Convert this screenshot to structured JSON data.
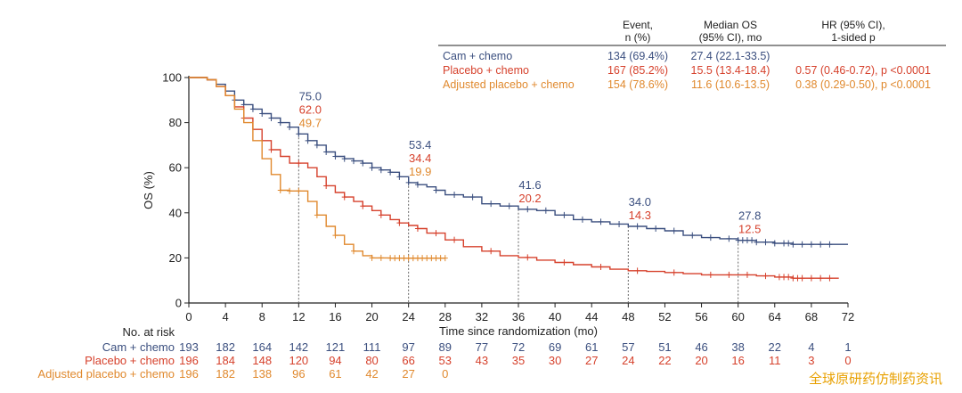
{
  "colors": {
    "cam": "#3b4f7f",
    "placebo": "#d6412c",
    "adjusted": "#e0892e",
    "axis": "#222222",
    "guide": "#666666"
  },
  "watermark": "全球原研药仿制药资讯",
  "summary_table": {
    "headers": {
      "event": [
        "Event,",
        "n (%)"
      ],
      "median": [
        "Median OS",
        "(95% CI), mo"
      ],
      "hr": [
        "HR (95% CI),",
        "1-sided p"
      ]
    },
    "rows": [
      {
        "key": "cam",
        "arm": "Cam + chemo",
        "event": "134 (69.4%)",
        "median": "27.4 (22.1-33.5)",
        "hr": ""
      },
      {
        "key": "placebo",
        "arm": "Placebo + chemo",
        "event": "167 (85.2%)",
        "median": "15.5 (13.4-18.4)",
        "hr": "0.57 (0.46-0.72), p <0.0001"
      },
      {
        "key": "adjusted",
        "arm": "Adjusted placebo + chemo",
        "event": "154 (78.6%)",
        "median": "11.6 (10.6-13.5)",
        "hr": "0.38 (0.29-0.50), p <0.0001"
      }
    ]
  },
  "risk_table": {
    "title": "No. at risk",
    "times": [
      0,
      4,
      8,
      12,
      16,
      20,
      24,
      28,
      32,
      36,
      40,
      44,
      48,
      52,
      56,
      60,
      64,
      68,
      72
    ],
    "rows": [
      {
        "key": "cam",
        "label": "Cam + chemo",
        "values": [
          "193",
          "182",
          "164",
          "142",
          "121",
          "111",
          "97",
          "89",
          "77",
          "72",
          "69",
          "61",
          "57",
          "51",
          "46",
          "38",
          "22",
          "4",
          "1"
        ]
      },
      {
        "key": "placebo",
        "label": "Placebo + chemo",
        "values": [
          "196",
          "184",
          "148",
          "120",
          "94",
          "80",
          "66",
          "53",
          "43",
          "35",
          "30",
          "27",
          "24",
          "22",
          "20",
          "16",
          "11",
          "3",
          "0"
        ]
      },
      {
        "key": "adjusted",
        "label": "Adjusted placebo + chemo",
        "values": [
          "196",
          "182",
          "138",
          "96",
          "61",
          "42",
          "27",
          "0"
        ]
      }
    ]
  },
  "chart_data": {
    "type": "line",
    "title": "",
    "xlabel": "Time since randomization (mo)",
    "ylabel": "OS (%)",
    "xlim": [
      0,
      72
    ],
    "ylim": [
      0,
      100
    ],
    "xticks": [
      0,
      4,
      8,
      12,
      16,
      20,
      24,
      28,
      32,
      36,
      40,
      44,
      48,
      52,
      56,
      60,
      64,
      68,
      72
    ],
    "yticks": [
      0,
      20,
      40,
      60,
      80,
      100
    ],
    "grid": false,
    "step": true,
    "series": [
      {
        "key": "cam",
        "name": "Cam + chemo",
        "x": [
          0,
          1,
          2,
          3,
          4,
          5,
          6,
          7,
          8,
          9,
          10,
          11,
          12,
          13,
          14,
          15,
          16,
          17,
          18,
          19,
          20,
          21,
          22,
          23,
          24,
          25,
          26,
          27,
          28,
          30,
          32,
          34,
          36,
          38,
          40,
          42,
          44,
          46,
          48,
          50,
          52,
          54,
          56,
          58,
          60,
          62,
          64,
          66,
          68,
          70,
          72
        ],
        "y": [
          100,
          100,
          99,
          97,
          94,
          90,
          88,
          86,
          84,
          82,
          80,
          78,
          75,
          72,
          70,
          67,
          65,
          64,
          63,
          62,
          60,
          59,
          58,
          56,
          53.4,
          52.5,
          51.5,
          50,
          48,
          47,
          44,
          43,
          41.6,
          41,
          39,
          37,
          36,
          35,
          34,
          33,
          32,
          30,
          29,
          28.5,
          27.8,
          27,
          26.5,
          26,
          26,
          26,
          26
        ],
        "censor_x": [
          5,
          6,
          7,
          8,
          9,
          10,
          11,
          12,
          13,
          14,
          15,
          16,
          17,
          18,
          19,
          20,
          21,
          22,
          23,
          24,
          25,
          27,
          29,
          31,
          33,
          35,
          37,
          39,
          41,
          43,
          45,
          47,
          49,
          51,
          53,
          55,
          57,
          59,
          60,
          60.5,
          61,
          61.5,
          62,
          63,
          64,
          65,
          65.5,
          66,
          67,
          68,
          69,
          70
        ]
      },
      {
        "key": "placebo",
        "name": "Placebo + chemo",
        "x": [
          0,
          1,
          2,
          3,
          4,
          5,
          6,
          7,
          8,
          9,
          10,
          11,
          12,
          13,
          14,
          15,
          16,
          17,
          18,
          19,
          20,
          21,
          22,
          23,
          24,
          25,
          26,
          28,
          30,
          32,
          34,
          36,
          38,
          40,
          42,
          44,
          46,
          48,
          50,
          52,
          54,
          56,
          58,
          60,
          62,
          64,
          66,
          68,
          70,
          71
        ],
        "y": [
          100,
          100,
          99,
          96,
          92,
          87,
          82,
          77,
          72,
          68,
          65,
          62,
          62,
          60,
          56,
          52,
          49,
          47,
          45,
          43,
          41,
          39,
          37,
          35.5,
          34.4,
          33,
          31,
          28,
          25,
          23,
          21,
          20.2,
          19,
          18,
          17,
          16,
          15,
          14.3,
          14,
          13.5,
          13,
          12.5,
          12.5,
          12.5,
          12,
          11.5,
          11,
          11,
          11,
          11
        ],
        "censor_x": [
          6,
          9,
          12,
          15,
          17,
          19,
          21,
          23,
          25,
          27,
          29,
          33,
          37,
          41,
          45,
          49,
          53,
          57,
          59,
          61,
          63,
          64.5,
          65,
          65.5,
          66,
          66.5,
          67,
          68,
          69,
          70
        ]
      },
      {
        "key": "adjusted",
        "name": "Adjusted placebo + chemo",
        "x": [
          0,
          1,
          2,
          3,
          4,
          5,
          6,
          7,
          8,
          9,
          10,
          11,
          12,
          13,
          14,
          15,
          16,
          17,
          18,
          19,
          20,
          21,
          22,
          23,
          24,
          28
        ],
        "y": [
          100,
          100,
          99,
          96,
          92,
          86,
          80,
          72,
          64,
          57,
          50,
          49.7,
          49.7,
          45,
          39,
          34,
          30,
          26,
          23,
          21,
          20,
          20,
          19.9,
          19.9,
          19.9,
          19.9
        ],
        "censor_x": [
          10,
          11,
          12,
          14,
          16,
          18,
          20,
          21,
          22,
          22.5,
          23,
          23.5,
          24,
          24.5,
          25,
          25.5,
          26,
          26.5,
          27,
          27.5,
          28
        ]
      }
    ],
    "landmarks": [
      {
        "x": 12,
        "labels": [
          {
            "key": "cam",
            "text": "75.0"
          },
          {
            "key": "placebo",
            "text": "62.0"
          },
          {
            "key": "adjusted",
            "text": "49.7"
          }
        ]
      },
      {
        "x": 24,
        "labels": [
          {
            "key": "cam",
            "text": "53.4"
          },
          {
            "key": "placebo",
            "text": "34.4"
          },
          {
            "key": "adjusted",
            "text": "19.9"
          }
        ]
      },
      {
        "x": 36,
        "labels": [
          {
            "key": "cam",
            "text": "41.6"
          },
          {
            "key": "placebo",
            "text": "20.2"
          }
        ]
      },
      {
        "x": 48,
        "labels": [
          {
            "key": "cam",
            "text": "34.0"
          },
          {
            "key": "placebo",
            "text": "14.3"
          }
        ]
      },
      {
        "x": 60,
        "labels": [
          {
            "key": "cam",
            "text": "27.8"
          },
          {
            "key": "placebo",
            "text": "12.5"
          }
        ]
      }
    ]
  }
}
